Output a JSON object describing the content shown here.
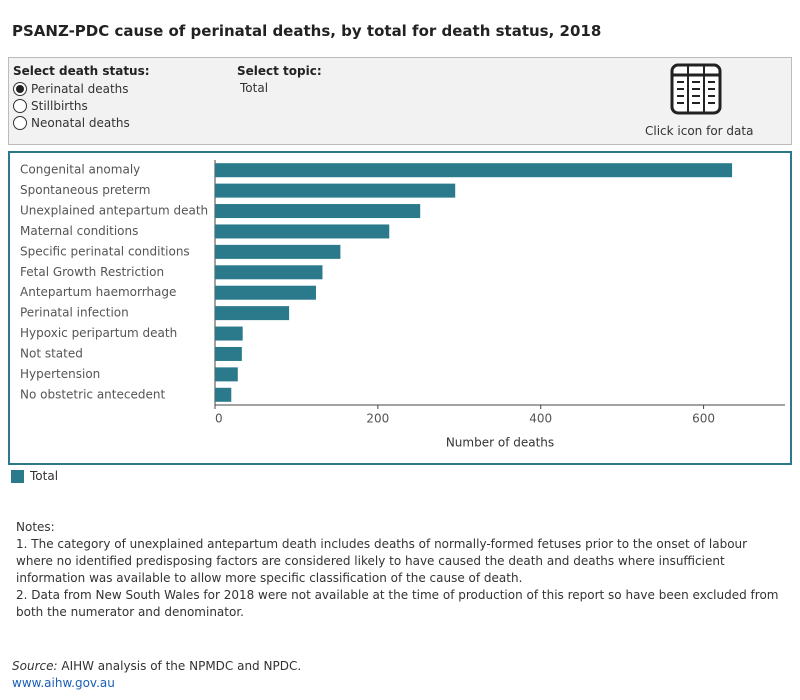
{
  "chart_data": {
    "type": "bar",
    "orientation": "horizontal",
    "title": "PSANZ-PDC cause of perinatal deaths, by total for death status, 2018",
    "categories": [
      "Congenital anomaly",
      "Spontaneous preterm",
      "Unexplained antepartum death",
      "Maternal conditions",
      "Specific perinatal conditions",
      "Fetal Growth Restriction",
      "Antepartum haemorrhage",
      "Perinatal infection",
      "Hypoxic peripartum death",
      "Not stated",
      "Hypertension",
      "No obstetric antecedent"
    ],
    "series": [
      {
        "name": "Total",
        "color": "#2b7a8c",
        "values": [
          635,
          295,
          252,
          214,
          154,
          132,
          124,
          91,
          34,
          33,
          28,
          20
        ]
      }
    ],
    "xlim": [
      0,
      700
    ],
    "xticks": [
      0,
      200,
      400,
      600
    ],
    "xlabel": "Number of deaths",
    "grid": false
  },
  "filters": {
    "death_status": {
      "label": "Select death status:",
      "options": [
        "Perinatal deaths",
        "Stillbirths",
        "Neonatal deaths"
      ],
      "selected": 0
    },
    "topic": {
      "label": "Select topic:",
      "value": "Total"
    },
    "data_icon_label": "Click icon for data"
  },
  "notes": {
    "heading": "Notes:",
    "items": [
      "1. The category of unexplained antepartum death includes deaths of normally-formed fetuses prior to the onset of labour where no identified predisposing factors are considered likely to have caused the death and deaths where insufficient information was available to allow more specific classification of the cause of death.",
      "2. Data from New South Wales for 2018 were not available at the time of production of this report so have been excluded from both the numerator and denominator."
    ]
  },
  "source": {
    "label": "Source:",
    "text": "AIHW analysis of the NPMDC and NPDC.",
    "link": "www.aihw.gov.au"
  }
}
